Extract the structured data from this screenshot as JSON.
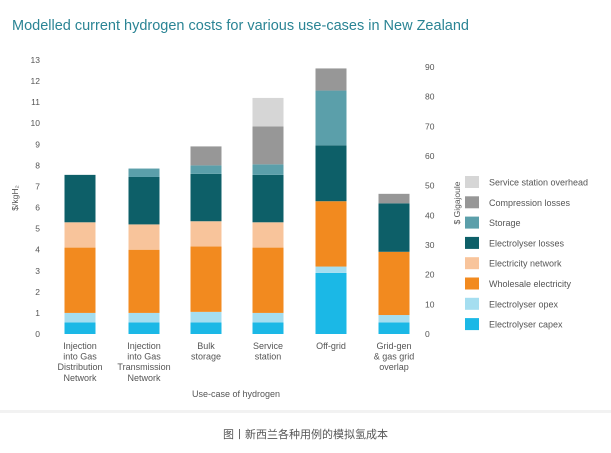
{
  "title": "Modelled current hydrogen costs for various use-cases in New Zealand",
  "caption": "图丨新西兰各种用例的模拟氢成本",
  "chart_data": {
    "type": "bar",
    "stacked": true,
    "title": "Modelled current hydrogen costs for various use-cases in New Zealand",
    "xlabel": "Use-case of hydrogen",
    "ylabel": "$/kgH₂",
    "y2label": "$ Gigajoule",
    "ylim": [
      0,
      13
    ],
    "y2lim": [
      0,
      90
    ],
    "yticks": [
      "0",
      "1",
      "2",
      "3",
      "4",
      "5",
      "6",
      "7",
      "8",
      "9",
      "10",
      "11",
      "12",
      "13"
    ],
    "y2ticks": [
      "0",
      "10",
      "20",
      "30",
      "40",
      "50",
      "60",
      "70",
      "80",
      "90"
    ],
    "grid": false,
    "legend_position": "right",
    "categories": [
      [
        "Injection",
        "into Gas",
        "Distribution",
        "Network"
      ],
      [
        "Injection",
        "into Gas",
        "Transmission",
        "Network"
      ],
      [
        "Bulk",
        "storage"
      ],
      [
        "Service",
        "station"
      ],
      [
        "Off-grid"
      ],
      [
        "Grid-gen",
        "& gas grid",
        "overlap"
      ]
    ],
    "series": [
      {
        "name": "Electrolyser capex",
        "color": "#1bb8e6",
        "values": [
          0.55,
          0.55,
          0.55,
          0.55,
          2.9,
          0.55
        ]
      },
      {
        "name": "Electrolyser opex",
        "color": "#a5def0",
        "values": [
          0.45,
          0.45,
          0.5,
          0.45,
          0.3,
          0.35
        ]
      },
      {
        "name": "Wholesale electricity",
        "color": "#f28a1f",
        "values": [
          3.1,
          3.0,
          3.1,
          3.1,
          3.1,
          3.0
        ]
      },
      {
        "name": "Electricity network",
        "color": "#f8c49b",
        "values": [
          1.2,
          1.2,
          1.2,
          1.2,
          0.0,
          0.0
        ]
      },
      {
        "name": "Electrolyser losses",
        "color": "#0d5f68",
        "values": [
          2.25,
          2.25,
          2.25,
          2.25,
          2.65,
          2.3
        ]
      },
      {
        "name": "Storage",
        "color": "#5b9faa",
        "values": [
          0.0,
          0.4,
          0.4,
          0.5,
          2.6,
          0.0
        ]
      },
      {
        "name": "Compression losses",
        "color": "#979797",
        "values": [
          0.0,
          0.0,
          0.9,
          1.8,
          1.05,
          0.45
        ]
      },
      {
        "name": "Service station overhead",
        "color": "#d6d6d6",
        "values": [
          0.0,
          0.0,
          0.0,
          1.35,
          0.0,
          0.0
        ]
      }
    ]
  }
}
